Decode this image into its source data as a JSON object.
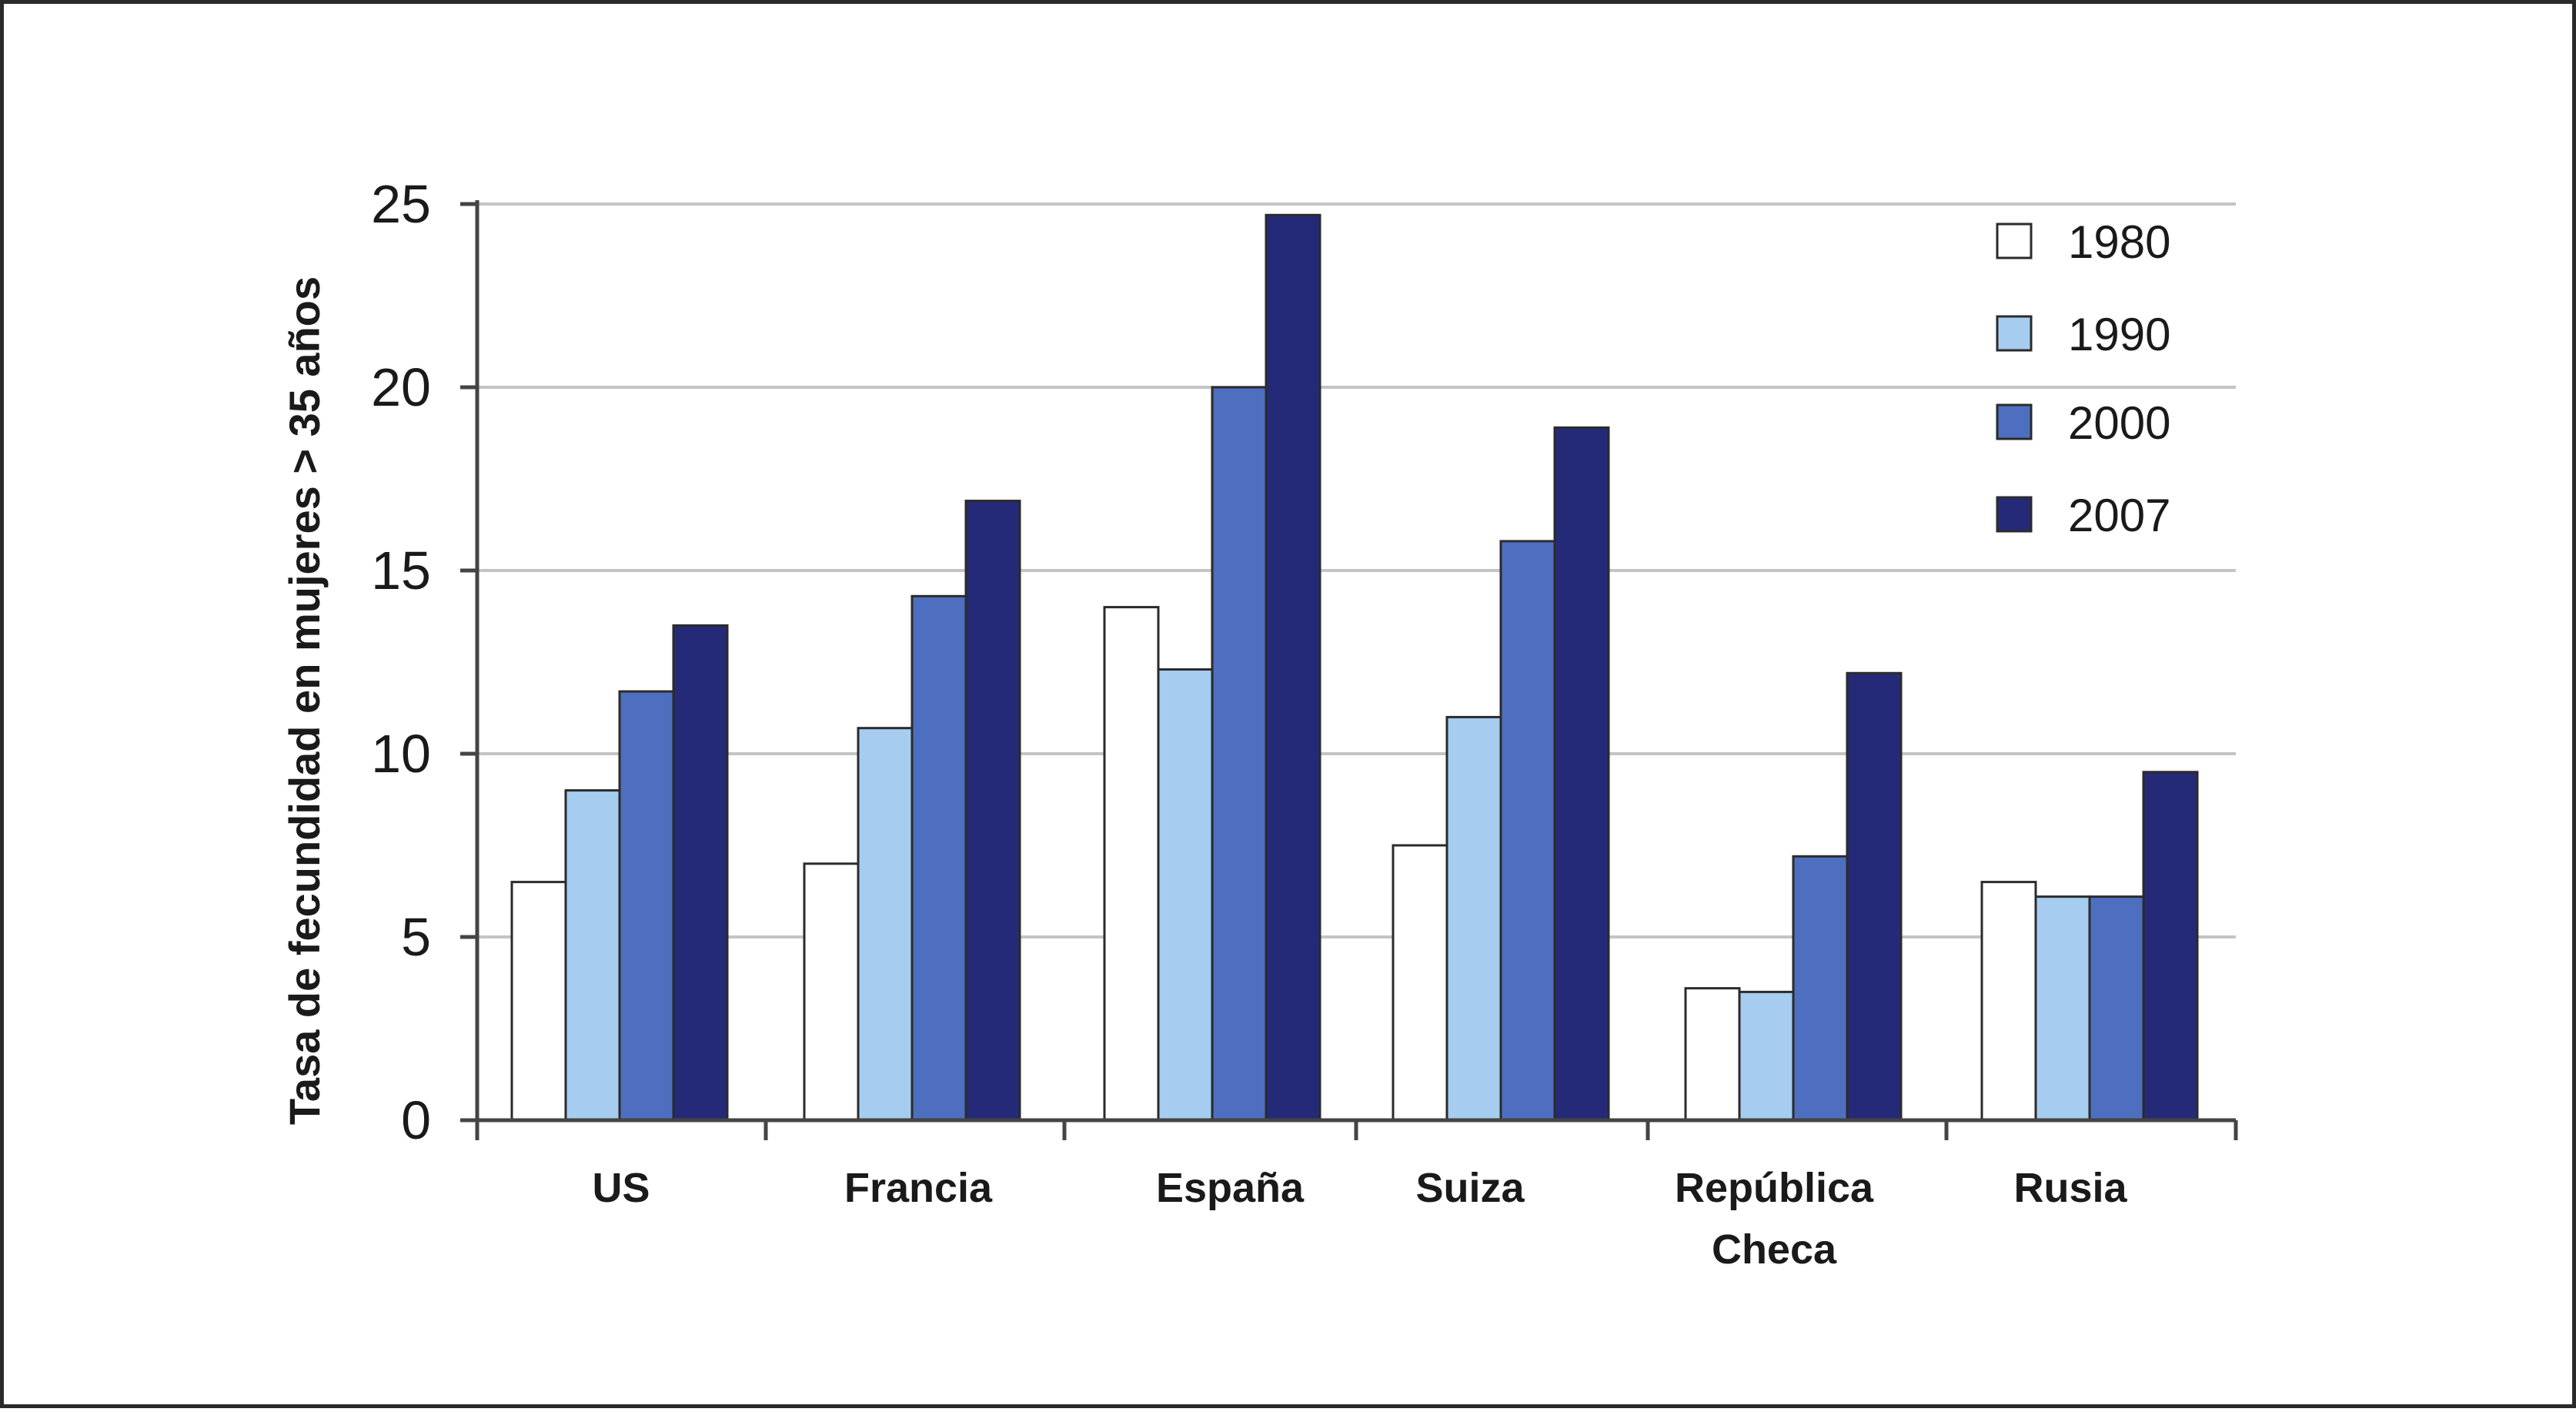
{
  "chart_data": {
    "type": "bar",
    "title": "",
    "xlabel": "",
    "ylabel": "Tasa  de fecundidad  en mujeres  > 35 años",
    "ylim": [
      0,
      25
    ],
    "yticks": [
      "0",
      "5",
      "10",
      "15",
      "20",
      "25"
    ],
    "grid": true,
    "legend_position": "top-right",
    "categories": [
      "US",
      "Francia",
      "España",
      "Suiza",
      "República\nCheca",
      "Rusia"
    ],
    "series": [
      {
        "name": "1980",
        "color": "#ffffff",
        "values": [
          6.5,
          7.0,
          14.0,
          7.5,
          3.6,
          6.5
        ]
      },
      {
        "name": "1990",
        "color": "#a6cdf0",
        "values": [
          9.0,
          10.7,
          12.3,
          11.0,
          3.5,
          6.1
        ]
      },
      {
        "name": "2000",
        "color": "#4e6fbf",
        "values": [
          11.7,
          14.3,
          20.0,
          15.8,
          7.2,
          6.1
        ]
      },
      {
        "name": "2007",
        "color": "#252a78",
        "values": [
          13.5,
          16.9,
          24.7,
          18.9,
          12.2,
          9.5
        ]
      }
    ]
  }
}
